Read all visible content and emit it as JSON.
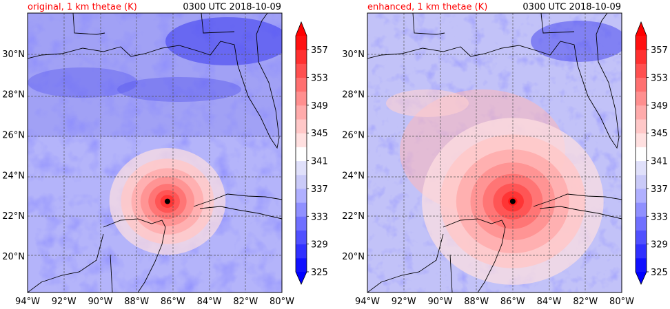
{
  "figure": {
    "valid_time": "0300 UTC 2018-10-09",
    "title_color": "#ff0000"
  },
  "panels": [
    {
      "title": "original, 1 km thetae (K)",
      "storm_center": {
        "lon": -86.3,
        "lat": 22.7
      },
      "core_radius_deg": 1.0,
      "outer_radius_deg": 3.2
    },
    {
      "title": "enhanced, 1 km thetae (K)",
      "storm_center": {
        "lon": -86.0,
        "lat": 22.7
      },
      "core_radius_deg": 1.6,
      "outer_radius_deg": 5.0
    }
  ],
  "map_extent": {
    "lon": [
      -94,
      -80
    ],
    "lat": [
      18.2,
      32.0
    ]
  },
  "xticks": [
    {
      "value": -94,
      "label": "94°W"
    },
    {
      "value": -92,
      "label": "92°W"
    },
    {
      "value": -90,
      "label": "90°W"
    },
    {
      "value": -88,
      "label": "88°W"
    },
    {
      "value": -86,
      "label": "86°W"
    },
    {
      "value": -84,
      "label": "84°W"
    },
    {
      "value": -82,
      "label": "82°W"
    },
    {
      "value": -80,
      "label": "80°W"
    }
  ],
  "yticks": [
    {
      "value": 20,
      "label": "20°N"
    },
    {
      "value": 22,
      "label": "22°N"
    },
    {
      "value": 24,
      "label": "24°N"
    },
    {
      "value": 26,
      "label": "26°N"
    },
    {
      "value": 28,
      "label": "28°N"
    },
    {
      "value": 30,
      "label": "30°N"
    }
  ],
  "colorbar": {
    "min": 325,
    "max": 359,
    "step": 2,
    "tick_labels": [
      "325",
      "329",
      "333",
      "337",
      "341",
      "345",
      "349",
      "353",
      "357"
    ],
    "tick_values": [
      325,
      329,
      333,
      337,
      341,
      345,
      349,
      353,
      357
    ],
    "colors": [
      "#1010ff",
      "#3030ff",
      "#5050ff",
      "#7070ff",
      "#9090ff",
      "#b0b0ff",
      "#cacaf8",
      "#e0e0fa",
      "#ffffff",
      "#ffe0e0",
      "#ffc8c8",
      "#ffabab",
      "#ff8f8f",
      "#ff7070",
      "#ff5050",
      "#ff3030",
      "#ff1010"
    ],
    "under_color": "#0000ff",
    "over_color": "#ff0000"
  },
  "grid": {
    "style": "dashed",
    "color": "#666666"
  },
  "coastline_color": "#000000"
}
